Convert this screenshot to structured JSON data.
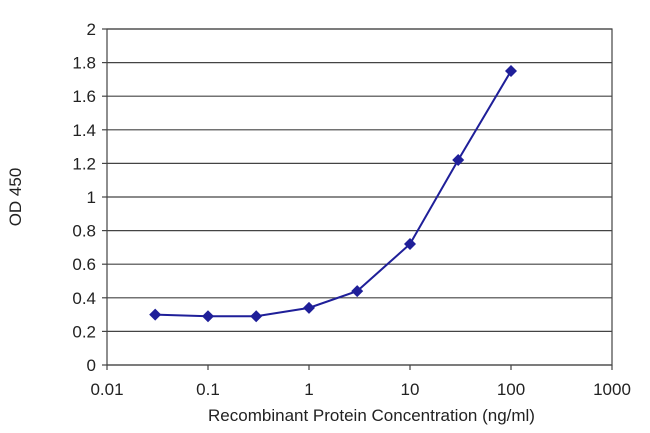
{
  "chart_data": {
    "type": "line",
    "title": "",
    "xlabel": "Recombinant Protein Concentration (ng/ml)",
    "ylabel": "OD 450",
    "x_scale": "log",
    "xlim": [
      0.01,
      1000
    ],
    "ylim": [
      0,
      2
    ],
    "x_ticks": [
      "0.01",
      "0.1",
      "1",
      "10",
      "100",
      "1000"
    ],
    "y_ticks": [
      "0",
      "0.2",
      "0.4",
      "0.6",
      "0.8",
      "1",
      "1.2",
      "1.4",
      "1.6",
      "1.8",
      "2"
    ],
    "grid": "horizontal",
    "series": [
      {
        "x": [
          0.03,
          0.1,
          0.3,
          1,
          3,
          10,
          30,
          100
        ],
        "y": [
          0.3,
          0.29,
          0.29,
          0.34,
          0.44,
          0.72,
          1.22,
          1.75
        ]
      }
    ],
    "colors": {
      "series": "#1f1f99",
      "grid": "#444444",
      "plot_border": "#444444"
    }
  }
}
